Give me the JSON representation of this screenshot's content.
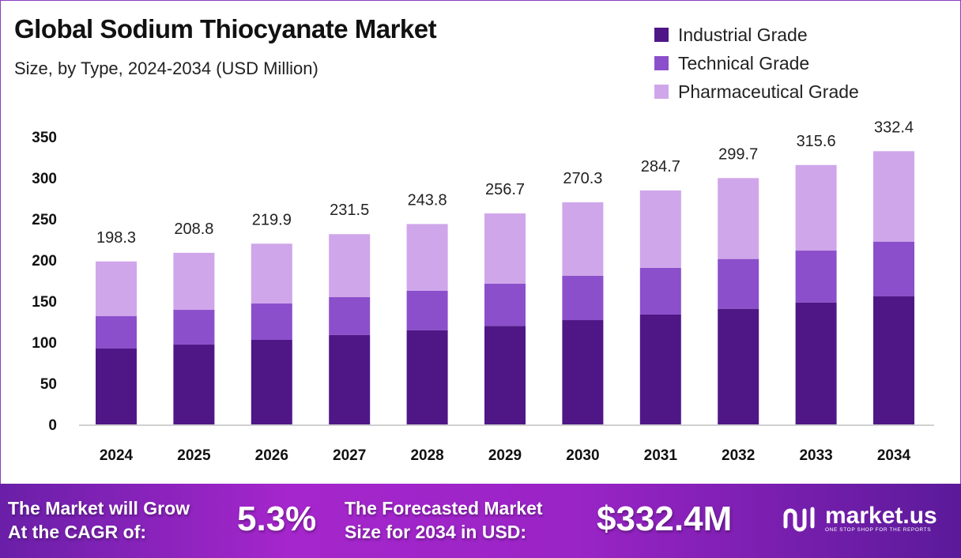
{
  "chart_data": {
    "type": "bar",
    "stacked": true,
    "title": "Global Sodium Thiocyanate Market",
    "subtitle": "Size, by Type, 2024-2034 (USD Million)",
    "categories": [
      "2024",
      "2025",
      "2026",
      "2027",
      "2028",
      "2029",
      "2030",
      "2031",
      "2032",
      "2033",
      "2034"
    ],
    "series": [
      {
        "name": "Industrial Grade",
        "color": "#4f1786",
        "values": [
          92.3,
          97.1,
          102.9,
          108.7,
          114.7,
          119.9,
          126.9,
          133.7,
          140.7,
          148.4,
          156.1
        ]
      },
      {
        "name": "Technical Grade",
        "color": "#8b4fcb",
        "values": [
          39.4,
          42.3,
          44.2,
          46.1,
          47.8,
          51.3,
          53.9,
          56.7,
          60.6,
          63.1,
          66.3
        ]
      },
      {
        "name": "Pharmaceutical Grade",
        "color": "#cfa6ea",
        "values": [
          66.6,
          69.4,
          72.8,
          76.7,
          81.3,
          85.5,
          89.5,
          94.3,
          98.4,
          104.1,
          110.0
        ]
      }
    ],
    "totals": [
      "198.3",
      "208.8",
      "219.9",
      "231.5",
      "243.8",
      "256.7",
      "270.3",
      "284.7",
      "299.7",
      "315.6",
      "332.4"
    ],
    "totals_values": [
      198.3,
      208.8,
      219.9,
      231.5,
      243.8,
      256.7,
      270.3,
      284.7,
      299.7,
      315.6,
      332.4
    ],
    "yticks": [
      "0",
      "50",
      "100",
      "150",
      "200",
      "250",
      "300",
      "350"
    ],
    "ylim": [
      0,
      350
    ],
    "xlabel": "",
    "ylabel": "",
    "grid": false,
    "legend_position": "top-right"
  },
  "footer": {
    "cagr_label_1": "The Market will Grow",
    "cagr_label_2": "At the CAGR of:",
    "cagr_value": "5.3%",
    "forecast_label_1": "The Forecasted Market",
    "forecast_label_2": "Size for 2034 in USD:",
    "forecast_value": "$332.4M",
    "brand": "market.us",
    "tagline": "ONE STOP SHOP FOR THE REPORTS"
  }
}
